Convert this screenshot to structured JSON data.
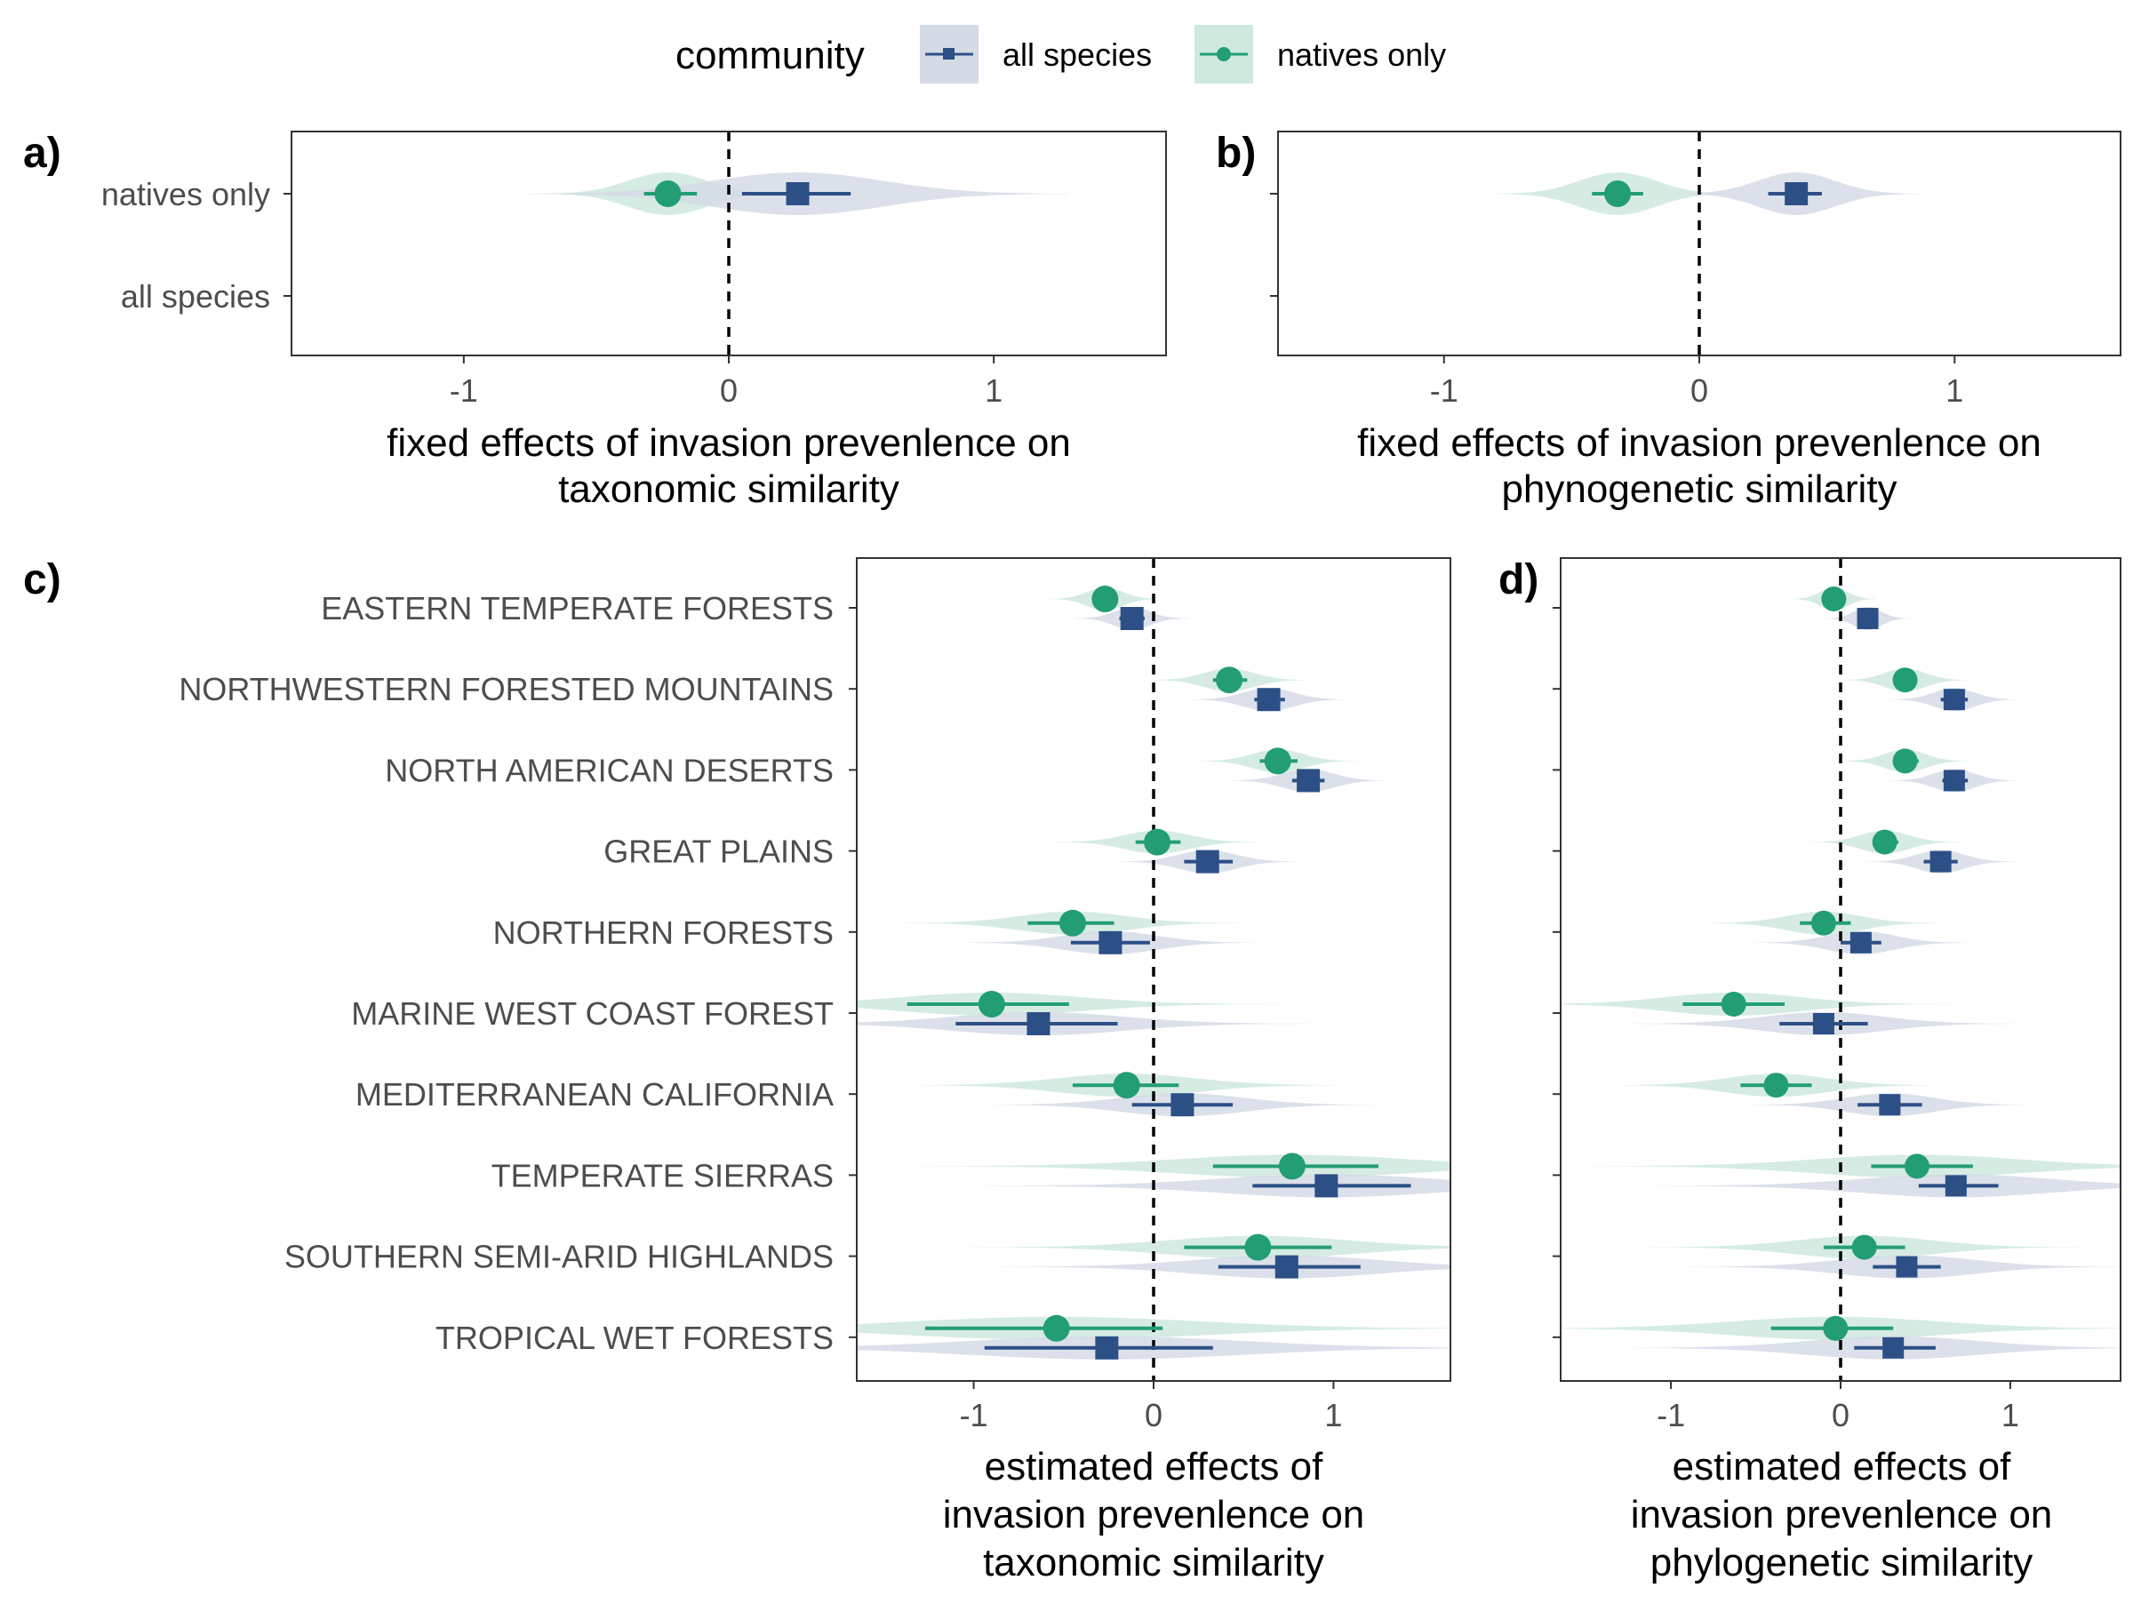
{
  "legend": {
    "title": "community",
    "items": [
      {
        "label": "all species",
        "color": "#2c4f86",
        "fill": "#d5dbe6",
        "shape": "square"
      },
      {
        "label": "natives only",
        "color": "#239e74",
        "fill": "#cfe9de",
        "shape": "circle"
      }
    ]
  },
  "chart_data": [
    {
      "panel": "a)",
      "type": "violin-pointrange",
      "xlabel": "fixed effects of invasion prevenlence on taxonomic similarity",
      "xlabel_lines": [
        "fixed effects of invasion prevenlence on",
        "taxonomic similarity"
      ],
      "xlim": [
        -1.65,
        1.65
      ],
      "xticks": [
        -1,
        0,
        1
      ],
      "ref_line": 0,
      "grid": false,
      "categories": [
        "natives only",
        "all species"
      ],
      "series": [
        {
          "name": "natives only",
          "estimate": [
            -0.23
          ],
          "lower": [
            -0.32
          ],
          "upper": [
            -0.12
          ],
          "spread": [
            0.15
          ]
        },
        {
          "name": "all species",
          "estimate": [
            0.26
          ],
          "lower": [
            0.05
          ],
          "upper": [
            0.46
          ],
          "spread": [
            0.32
          ]
        }
      ]
    },
    {
      "panel": "b)",
      "type": "violin-pointrange",
      "xlabel": "fixed effects of invasion prevenlence on phynogenetic similarity",
      "xlabel_lines": [
        "fixed effects of invasion prevenlence on",
        "phynogenetic similarity"
      ],
      "xlim": [
        -1.65,
        1.65
      ],
      "xticks": [
        -1,
        0,
        1
      ],
      "ref_line": 0,
      "grid": false,
      "categories": [
        "natives only",
        "all species"
      ],
      "series": [
        {
          "name": "natives only",
          "estimate": [
            -0.32
          ],
          "lower": [
            -0.42
          ],
          "upper": [
            -0.22
          ],
          "spread": [
            0.15
          ]
        },
        {
          "name": "all species",
          "estimate": [
            0.38
          ],
          "lower": [
            0.27
          ],
          "upper": [
            0.48
          ],
          "spread": [
            0.15
          ]
        }
      ]
    },
    {
      "panel": "c)",
      "type": "violin-pointrange",
      "xlabel": "estimated effects of invasion prevenlence on taxonomic similarity",
      "xlabel_lines": [
        "estimated effects of",
        "invasion prevenlence on",
        "taxonomic similarity"
      ],
      "xlim": [
        -1.65,
        1.65
      ],
      "xticks": [
        -1,
        0,
        1
      ],
      "ref_line": 0,
      "grid": false,
      "categories": [
        "EASTERN TEMPERATE FORESTS",
        "NORTHWESTERN FORESTED MOUNTAINS",
        "NORTH AMERICAN DESERTS",
        "GREAT PLAINS",
        "NORTHERN FORESTS",
        "MARINE WEST COAST FOREST",
        "MEDITERRANEAN CALIFORNIA",
        "TEMPERATE SIERRAS",
        "SOUTHERN SEMI-ARID HIGHLANDS",
        "TROPICAL WET FORESTS"
      ],
      "series": [
        {
          "name": "natives only",
          "estimate": [
            -0.27,
            0.42,
            0.69,
            0.02,
            -0.45,
            -0.9,
            -0.15,
            0.77,
            0.58,
            -0.54
          ],
          "lower": [
            -0.33,
            0.33,
            0.59,
            -0.1,
            -0.7,
            -1.37,
            -0.45,
            0.33,
            0.17,
            -1.27
          ],
          "upper": [
            -0.2,
            0.52,
            0.8,
            0.15,
            -0.22,
            -0.47,
            0.14,
            1.25,
            0.99,
            0.05
          ],
          "spread": [
            0.1,
            0.14,
            0.14,
            0.18,
            0.3,
            0.5,
            0.38,
            0.65,
            0.5,
            0.8
          ]
        },
        {
          "name": "all species",
          "estimate": [
            -0.12,
            0.64,
            0.86,
            0.3,
            -0.24,
            -0.64,
            0.16,
            0.96,
            0.74,
            -0.26
          ],
          "lower": [
            -0.19,
            0.56,
            0.77,
            0.17,
            -0.46,
            -1.1,
            -0.12,
            0.55,
            0.36,
            -0.94
          ],
          "upper": [
            -0.05,
            0.73,
            0.95,
            0.44,
            -0.02,
            -0.2,
            0.44,
            1.43,
            1.15,
            0.33
          ],
          "spread": [
            0.1,
            0.14,
            0.14,
            0.16,
            0.26,
            0.48,
            0.34,
            0.6,
            0.5,
            0.75
          ]
        }
      ]
    },
    {
      "panel": "d)",
      "type": "violin-pointrange",
      "xlabel": "estimated effects of invasion prevenlence on phylogenetic similarity",
      "xlabel_lines": [
        "estimated effects of",
        "invasion prevenlence on",
        "phylogenetic similarity"
      ],
      "xlim": [
        -1.65,
        1.65
      ],
      "xticks": [
        -1,
        0,
        1
      ],
      "ref_line": 0,
      "grid": false,
      "categories": [
        "EASTERN TEMPERATE FORESTS",
        "NORTHWESTERN FORESTED MOUNTAINS",
        "NORTH AMERICAN DESERTS",
        "GREAT PLAINS",
        "NORTHERN FORESTS",
        "MARINE WEST COAST FOREST",
        "MEDITERRANEAN CALIFORNIA",
        "TEMPERATE SIERRAS",
        "SOUTHERN SEMI-ARID HIGHLANDS",
        "TROPICAL WET FORESTS"
      ],
      "series": [
        {
          "name": "natives only",
          "estimate": [
            -0.04,
            0.38,
            0.38,
            0.26,
            -0.1,
            -0.63,
            -0.38,
            0.45,
            0.14,
            -0.03
          ],
          "lower": [
            -0.08,
            0.31,
            0.31,
            0.19,
            -0.24,
            -0.93,
            -0.59,
            0.18,
            -0.1,
            -0.41
          ],
          "upper": [
            0.0,
            0.45,
            0.46,
            0.34,
            0.06,
            -0.33,
            -0.17,
            0.78,
            0.38,
            0.31
          ],
          "spread": [
            0.08,
            0.12,
            0.12,
            0.14,
            0.22,
            0.4,
            0.3,
            0.6,
            0.4,
            0.6
          ]
        },
        {
          "name": "all species",
          "estimate": [
            0.16,
            0.67,
            0.67,
            0.59,
            0.12,
            -0.1,
            0.29,
            0.68,
            0.39,
            0.31
          ],
          "lower": [
            0.13,
            0.59,
            0.6,
            0.49,
            0.0,
            -0.36,
            0.1,
            0.46,
            0.19,
            0.08
          ],
          "upper": [
            0.19,
            0.75,
            0.75,
            0.69,
            0.24,
            0.16,
            0.48,
            0.93,
            0.59,
            0.56
          ],
          "spread": [
            0.08,
            0.12,
            0.12,
            0.14,
            0.2,
            0.36,
            0.26,
            0.55,
            0.4,
            0.5
          ]
        }
      ]
    }
  ]
}
